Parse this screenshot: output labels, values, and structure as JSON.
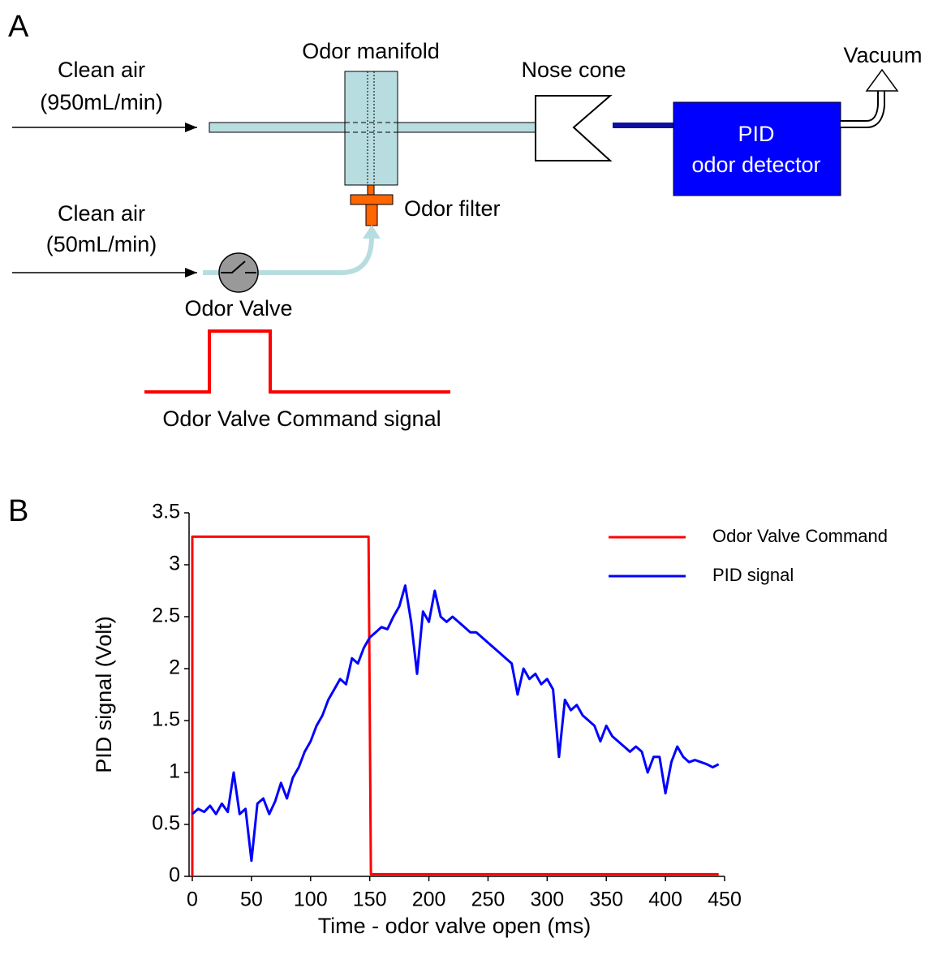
{
  "panel_a": {
    "label": "A",
    "air_main_label": "Clean air",
    "air_main_flow": "(950mL/min)",
    "manifold": "Odor manifold",
    "nose_cone": "Nose cone",
    "vacuum": "Vacuum",
    "detector_line1": "PID",
    "detector_line2": "odor detector",
    "filter": "Odor filter",
    "air_odor_label": "Clean air",
    "air_odor_flow": "(50mL/min)",
    "valve": "Odor Valve",
    "command": "Odor Valve Command signal"
  },
  "chart_data": {
    "type": "line",
    "panel_label": "B",
    "x_label": "Time - odor valve open (ms)",
    "y_label": "PID signal (Volt)",
    "xlim": [
      0,
      450
    ],
    "ylim": [
      0,
      3.5
    ],
    "xticks": [
      0,
      50,
      100,
      150,
      200,
      250,
      300,
      350,
      400,
      450
    ],
    "yticks": [
      0,
      0.5,
      1,
      1.5,
      2,
      2.5,
      3,
      3.5
    ],
    "legend": "upper right",
    "series": [
      {
        "name": "Odor Valve Command",
        "color": "#ff0000",
        "x": [
          0,
          0,
          149,
          151,
          445
        ],
        "values": [
          0,
          3.27,
          3.27,
          0.02,
          0.02
        ]
      },
      {
        "name": "PID signal",
        "color": "#0000ff",
        "x": [
          0,
          5,
          10,
          15,
          20,
          25,
          30,
          35,
          40,
          45,
          50,
          55,
          60,
          65,
          70,
          75,
          80,
          85,
          90,
          95,
          100,
          105,
          110,
          115,
          120,
          125,
          130,
          135,
          140,
          145,
          150,
          155,
          160,
          165,
          170,
          175,
          180,
          185,
          190,
          195,
          200,
          205,
          210,
          215,
          220,
          225,
          230,
          235,
          240,
          245,
          250,
          255,
          260,
          265,
          270,
          275,
          280,
          285,
          290,
          295,
          300,
          305,
          310,
          315,
          320,
          325,
          330,
          335,
          340,
          345,
          350,
          355,
          360,
          365,
          370,
          375,
          380,
          385,
          390,
          395,
          400,
          405,
          410,
          415,
          420,
          425,
          430,
          435,
          440,
          445
        ],
        "values": [
          0.6,
          0.65,
          0.62,
          0.68,
          0.6,
          0.7,
          0.62,
          1.0,
          0.6,
          0.65,
          0.15,
          0.7,
          0.75,
          0.6,
          0.72,
          0.9,
          0.75,
          0.95,
          1.05,
          1.2,
          1.3,
          1.45,
          1.55,
          1.7,
          1.8,
          1.9,
          1.85,
          2.1,
          2.05,
          2.2,
          2.3,
          2.35,
          2.4,
          2.38,
          2.5,
          2.6,
          2.8,
          2.45,
          1.95,
          2.55,
          2.45,
          2.75,
          2.5,
          2.45,
          2.5,
          2.45,
          2.4,
          2.35,
          2.35,
          2.3,
          2.25,
          2.2,
          2.15,
          2.1,
          2.05,
          1.75,
          2.0,
          1.9,
          1.95,
          1.85,
          1.9,
          1.8,
          1.15,
          1.7,
          1.6,
          1.65,
          1.55,
          1.5,
          1.45,
          1.3,
          1.45,
          1.35,
          1.3,
          1.25,
          1.2,
          1.25,
          1.2,
          1.0,
          1.15,
          1.15,
          0.8,
          1.1,
          1.25,
          1.15,
          1.1,
          1.12,
          1.1,
          1.08,
          1.05,
          1.08
        ]
      }
    ]
  }
}
